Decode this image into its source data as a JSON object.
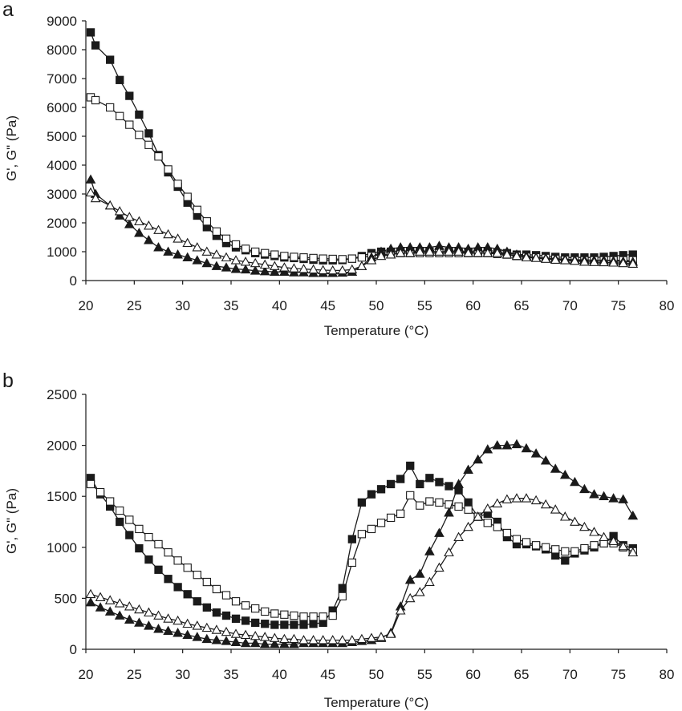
{
  "chart_data": [
    {
      "panel_label": "a",
      "type": "line",
      "xlabel": "Temperature (°C)",
      "ylabel": "G', G\" (Pa)",
      "xlim": [
        20,
        80
      ],
      "ylim": [
        0,
        9000
      ],
      "x_ticks": [
        "20",
        "25",
        "30",
        "35",
        "40",
        "45",
        "50",
        "55",
        "60",
        "65",
        "70",
        "75",
        "80"
      ],
      "y_ticks": [
        "0",
        "1000",
        "2000",
        "3000",
        "4000",
        "5000",
        "6000",
        "7000",
        "8000",
        "9000"
      ],
      "grid": false,
      "legend": "none",
      "series": [
        {
          "marker": "square-filled",
          "x": [
            20.5,
            21,
            22.5,
            23.5,
            24.5,
            25.5,
            26.5,
            27.5,
            28.5,
            29.5,
            30.5,
            31.5,
            32.5,
            33.5,
            34.5,
            35.5,
            36.5,
            37.5,
            38.5,
            39.5,
            40.5,
            41.5,
            42.5,
            43.5,
            44.5,
            45.5,
            46.5,
            47.5,
            48.5,
            49.5,
            50.5,
            51.5,
            52.5,
            53.5,
            54.5,
            55.5,
            56.5,
            57.5,
            58.5,
            59.5,
            60.5,
            61.5,
            62.5,
            63.5,
            64.5,
            65.5,
            66.5,
            67.5,
            68.5,
            69.5,
            70.5,
            71.5,
            72.5,
            73.5,
            74.5,
            75.5,
            76.5
          ],
          "values": [
            8600,
            8150,
            7650,
            6950,
            6400,
            5750,
            5100,
            4350,
            3750,
            3250,
            2700,
            2250,
            1850,
            1550,
            1300,
            1150,
            1050,
            950,
            900,
            850,
            800,
            780,
            750,
            720,
            700,
            700,
            710,
            760,
            850,
            950,
            1000,
            1000,
            1000,
            1000,
            1000,
            1000,
            1000,
            1000,
            1000,
            1000,
            1000,
            1000,
            950,
            950,
            900,
            900,
            880,
            850,
            820,
            800,
            800,
            800,
            800,
            820,
            850,
            880,
            900
          ]
        },
        {
          "marker": "square-open",
          "x": [
            20.5,
            21,
            22.5,
            23.5,
            24.5,
            25.5,
            26.5,
            27.5,
            28.5,
            29.5,
            30.5,
            31.5,
            32.5,
            33.5,
            34.5,
            35.5,
            36.5,
            37.5,
            38.5,
            39.5,
            40.5,
            41.5,
            42.5,
            43.5,
            44.5,
            45.5,
            46.5,
            47.5,
            48.5,
            49.5,
            50.5,
            51.5,
            52.5,
            53.5,
            54.5,
            55.5,
            56.5,
            57.5,
            58.5,
            59.5,
            60.5,
            61.5,
            62.5,
            63.5,
            64.5,
            65.5,
            66.5,
            67.5,
            68.5,
            69.5,
            70.5,
            71.5,
            72.5,
            73.5,
            74.5,
            75.5,
            76.5
          ],
          "values": [
            6350,
            6250,
            6000,
            5700,
            5400,
            5050,
            4700,
            4300,
            3850,
            3350,
            2900,
            2450,
            2050,
            1700,
            1450,
            1250,
            1100,
            1000,
            950,
            900,
            850,
            820,
            800,
            780,
            760,
            750,
            740,
            760,
            800,
            850,
            900,
            920,
            950,
            950,
            950,
            950,
            950,
            950,
            950,
            950,
            950,
            950,
            920,
            900,
            850,
            820,
            800,
            780,
            750,
            720,
            700,
            700,
            700,
            700,
            700,
            700,
            700
          ]
        },
        {
          "marker": "triangle-filled",
          "x": [
            20.5,
            21,
            22.5,
            23.5,
            24.5,
            25.5,
            26.5,
            27.5,
            28.5,
            29.5,
            30.5,
            31.5,
            32.5,
            33.5,
            34.5,
            35.5,
            36.5,
            37.5,
            38.5,
            39.5,
            40.5,
            41.5,
            42.5,
            43.5,
            44.5,
            45.5,
            46.5,
            47.5,
            48.5,
            49.5,
            50.5,
            51.5,
            52.5,
            53.5,
            54.5,
            55.5,
            56.5,
            57.5,
            58.5,
            59.5,
            60.5,
            61.5,
            62.5,
            63.5,
            64.5,
            65.5,
            66.5,
            67.5,
            68.5,
            69.5,
            70.5,
            71.5,
            72.5,
            73.5,
            74.5,
            75.5,
            76.5
          ],
          "values": [
            3500,
            3000,
            2600,
            2250,
            1950,
            1650,
            1400,
            1150,
            1000,
            900,
            800,
            700,
            600,
            500,
            450,
            400,
            380,
            340,
            320,
            300,
            300,
            280,
            280,
            260,
            260,
            260,
            270,
            300,
            500,
            800,
            1000,
            1100,
            1150,
            1150,
            1150,
            1150,
            1200,
            1150,
            1150,
            1100,
            1150,
            1150,
            1100,
            1000,
            900,
            850,
            800,
            780,
            760,
            740,
            720,
            720,
            700,
            700,
            680,
            660,
            650
          ]
        },
        {
          "marker": "triangle-open",
          "x": [
            20.5,
            21,
            22.5,
            23.5,
            24.5,
            25.5,
            26.5,
            27.5,
            28.5,
            29.5,
            30.5,
            31.5,
            32.5,
            33.5,
            34.5,
            35.5,
            36.5,
            37.5,
            38.5,
            39.5,
            40.5,
            41.5,
            42.5,
            43.5,
            44.5,
            45.5,
            46.5,
            47.5,
            48.5,
            49.5,
            50.5,
            51.5,
            52.5,
            53.5,
            54.5,
            55.5,
            56.5,
            57.5,
            58.5,
            59.5,
            60.5,
            61.5,
            62.5,
            63.5,
            64.5,
            65.5,
            66.5,
            67.5,
            68.5,
            69.5,
            70.5,
            71.5,
            72.5,
            73.5,
            74.5,
            75.5,
            76.5
          ],
          "values": [
            3050,
            2850,
            2600,
            2400,
            2200,
            2050,
            1900,
            1750,
            1600,
            1450,
            1300,
            1150,
            1000,
            900,
            800,
            700,
            650,
            600,
            550,
            500,
            450,
            420,
            400,
            380,
            360,
            350,
            350,
            380,
            500,
            700,
            850,
            900,
            950,
            950,
            1000,
            1000,
            1000,
            1000,
            1000,
            950,
            950,
            950,
            950,
            900,
            850,
            800,
            780,
            750,
            720,
            700,
            680,
            650,
            640,
            630,
            620,
            600,
            580
          ]
        }
      ]
    },
    {
      "panel_label": "b",
      "type": "line",
      "xlabel": "Temperature (°C)",
      "ylabel": "G', G\" (Pa)",
      "xlim": [
        20,
        80
      ],
      "ylim": [
        0,
        2500
      ],
      "x_ticks": [
        "20",
        "25",
        "30",
        "35",
        "40",
        "45",
        "50",
        "55",
        "60",
        "65",
        "70",
        "75",
        "80"
      ],
      "y_ticks": [
        "0",
        "500",
        "1000",
        "1500",
        "2000",
        "2500"
      ],
      "grid": false,
      "legend": "none",
      "series": [
        {
          "marker": "square-filled",
          "x": [
            20.5,
            21.5,
            22.5,
            23.5,
            24.5,
            25.5,
            26.5,
            27.5,
            28.5,
            29.5,
            30.5,
            31.5,
            32.5,
            33.5,
            34.5,
            35.5,
            36.5,
            37.5,
            38.5,
            39.5,
            40.5,
            41.5,
            42.5,
            43.5,
            44.5,
            45.5,
            46.5,
            47.5,
            48.5,
            49.5,
            50.5,
            51.5,
            52.5,
            53.5,
            54.5,
            55.5,
            56.5,
            57.5,
            58.5,
            59.5,
            60.5,
            61.5,
            62.5,
            63.5,
            64.5,
            65.5,
            66.5,
            67.5,
            68.5,
            69.5,
            70.5,
            71.5,
            72.5,
            73.5,
            74.5,
            75.5,
            76.5
          ],
          "values": [
            1680,
            1520,
            1400,
            1250,
            1120,
            990,
            880,
            780,
            690,
            610,
            540,
            470,
            410,
            360,
            330,
            300,
            280,
            260,
            250,
            240,
            240,
            240,
            240,
            250,
            260,
            380,
            600,
            1080,
            1440,
            1520,
            1570,
            1620,
            1670,
            1800,
            1620,
            1680,
            1640,
            1600,
            1560,
            1440,
            1300,
            1330,
            1250,
            1100,
            1030,
            1030,
            1010,
            980,
            920,
            870,
            940,
            970,
            1000,
            1040,
            1110,
            1020,
            990
          ]
        },
        {
          "marker": "square-open",
          "x": [
            20.5,
            21.5,
            22.5,
            23.5,
            24.5,
            25.5,
            26.5,
            27.5,
            28.5,
            29.5,
            30.5,
            31.5,
            32.5,
            33.5,
            34.5,
            35.5,
            36.5,
            37.5,
            38.5,
            39.5,
            40.5,
            41.5,
            42.5,
            43.5,
            44.5,
            45.5,
            46.5,
            47.5,
            48.5,
            49.5,
            50.5,
            51.5,
            52.5,
            53.5,
            54.5,
            55.5,
            56.5,
            57.5,
            58.5,
            59.5,
            60.5,
            61.5,
            62.5,
            63.5,
            64.5,
            65.5,
            66.5,
            67.5,
            68.5,
            69.5,
            70.5,
            71.5,
            72.5,
            73.5,
            74.5,
            75.5,
            76.5
          ],
          "values": [
            1620,
            1540,
            1450,
            1360,
            1270,
            1180,
            1100,
            1030,
            950,
            870,
            800,
            730,
            660,
            590,
            530,
            470,
            430,
            400,
            370,
            350,
            340,
            330,
            320,
            320,
            320,
            330,
            520,
            850,
            1130,
            1180,
            1240,
            1290,
            1330,
            1510,
            1410,
            1450,
            1440,
            1420,
            1400,
            1370,
            1300,
            1240,
            1200,
            1140,
            1080,
            1050,
            1020,
            1000,
            980,
            960,
            960,
            990,
            1020,
            1040,
            1040,
            1000,
            960
          ]
        },
        {
          "marker": "triangle-filled",
          "x": [
            20.5,
            21.5,
            22.5,
            23.5,
            24.5,
            25.5,
            26.5,
            27.5,
            28.5,
            29.5,
            30.5,
            31.5,
            32.5,
            33.5,
            34.5,
            35.5,
            36.5,
            37.5,
            38.5,
            39.5,
            40.5,
            41.5,
            42.5,
            43.5,
            44.5,
            45.5,
            46.5,
            47.5,
            48.5,
            49.5,
            50.5,
            51.5,
            52.5,
            53.5,
            54.5,
            55.5,
            56.5,
            57.5,
            58.5,
            59.5,
            60.5,
            61.5,
            62.5,
            63.5,
            64.5,
            65.5,
            66.5,
            67.5,
            68.5,
            69.5,
            70.5,
            71.5,
            72.5,
            73.5,
            74.5,
            75.5,
            76.5
          ],
          "values": [
            460,
            410,
            370,
            330,
            290,
            260,
            230,
            200,
            180,
            160,
            140,
            120,
            100,
            90,
            80,
            70,
            60,
            60,
            50,
            50,
            50,
            50,
            60,
            60,
            60,
            60,
            60,
            70,
            80,
            90,
            110,
            160,
            420,
            680,
            740,
            960,
            1140,
            1340,
            1620,
            1760,
            1860,
            1960,
            2000,
            2000,
            2010,
            1970,
            1920,
            1850,
            1770,
            1710,
            1640,
            1570,
            1520,
            1500,
            1480,
            1470,
            1310
          ]
        },
        {
          "marker": "triangle-open",
          "x": [
            20.5,
            21.5,
            22.5,
            23.5,
            24.5,
            25.5,
            26.5,
            27.5,
            28.5,
            29.5,
            30.5,
            31.5,
            32.5,
            33.5,
            34.5,
            35.5,
            36.5,
            37.5,
            38.5,
            39.5,
            40.5,
            41.5,
            42.5,
            43.5,
            44.5,
            45.5,
            46.5,
            47.5,
            48.5,
            49.5,
            50.5,
            51.5,
            52.5,
            53.5,
            54.5,
            55.5,
            56.5,
            57.5,
            58.5,
            59.5,
            60.5,
            61.5,
            62.5,
            63.5,
            64.5,
            65.5,
            66.5,
            67.5,
            68.5,
            69.5,
            70.5,
            71.5,
            72.5,
            73.5,
            74.5,
            75.5,
            76.5
          ],
          "values": [
            540,
            510,
            480,
            450,
            420,
            390,
            360,
            330,
            300,
            280,
            250,
            230,
            210,
            190,
            170,
            150,
            140,
            130,
            120,
            110,
            100,
            100,
            90,
            90,
            90,
            90,
            90,
            90,
            100,
            110,
            120,
            150,
            380,
            500,
            560,
            660,
            800,
            950,
            1100,
            1200,
            1300,
            1380,
            1430,
            1470,
            1480,
            1480,
            1460,
            1420,
            1370,
            1300,
            1250,
            1200,
            1150,
            1100,
            1060,
            1010,
            950
          ]
        }
      ]
    }
  ]
}
